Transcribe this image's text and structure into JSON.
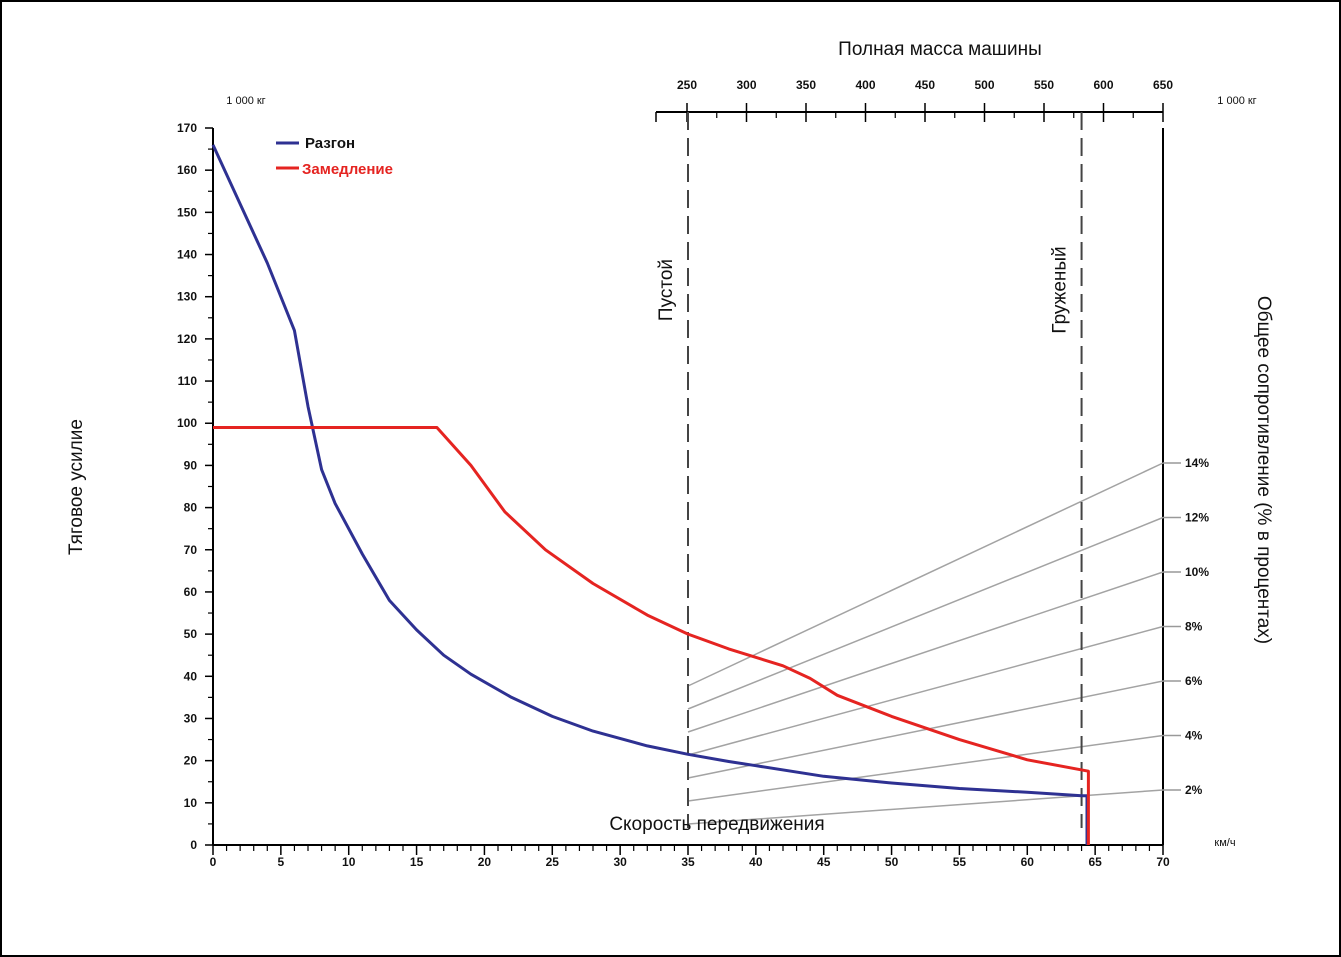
{
  "chart_data": {
    "type": "line",
    "xlabel": "Скорость передвижения",
    "x_unit": "км/ч",
    "ylabel": "Тяговое усилие",
    "y_unit_left": "1 000 кг",
    "top_axis_title": "Полная масса машины",
    "top_axis_unit": "1 000 кг",
    "right_axis_title": "Общее сопротивление (% в процентах)",
    "xlim": [
      0,
      70
    ],
    "ylim": [
      0,
      170
    ],
    "x_ticks": [
      "0",
      "5",
      "10",
      "15",
      "20",
      "25",
      "30",
      "35",
      "40",
      "45",
      "50",
      "55",
      "60",
      "65",
      "70"
    ],
    "y_ticks": [
      "0",
      "10",
      "20",
      "30",
      "40",
      "50",
      "60",
      "70",
      "80",
      "90",
      "100",
      "110",
      "120",
      "130",
      "140",
      "150",
      "160",
      "170"
    ],
    "top_ticks": [
      "250",
      "300",
      "350",
      "400",
      "450",
      "500",
      "550",
      "600",
      "650"
    ],
    "top_axis_range": [
      250,
      650
    ],
    "markers": [
      {
        "label": "Пустой",
        "x": 35
      },
      {
        "label": "Груженый",
        "x": 64
      }
    ],
    "resistance_lines": [
      "2%",
      "4%",
      "6%",
      "8%",
      "10%",
      "12%",
      "14%"
    ],
    "series": [
      {
        "name": "Разгон",
        "color": "#2e3192",
        "points": [
          [
            0,
            166
          ],
          [
            2,
            152
          ],
          [
            4,
            138
          ],
          [
            6,
            122
          ],
          [
            7,
            104
          ],
          [
            8,
            89
          ],
          [
            9,
            81
          ],
          [
            11,
            69
          ],
          [
            13,
            58
          ],
          [
            15,
            51
          ],
          [
            17,
            45
          ],
          [
            19,
            40.5
          ],
          [
            22,
            35
          ],
          [
            25,
            30.5
          ],
          [
            28,
            27
          ],
          [
            32,
            23.5
          ],
          [
            35,
            21.5
          ],
          [
            38,
            19.8
          ],
          [
            40,
            18.8
          ],
          [
            45,
            16.3
          ],
          [
            50,
            14.7
          ],
          [
            55,
            13.4
          ],
          [
            60,
            12.5
          ],
          [
            64,
            11.7
          ],
          [
            64.4,
            11.7
          ],
          [
            64.4,
            0
          ]
        ]
      },
      {
        "name": "Замедление",
        "color": "#e52421",
        "points": [
          [
            0,
            99
          ],
          [
            16.5,
            99
          ],
          [
            19,
            90
          ],
          [
            21.5,
            79
          ],
          [
            24.5,
            70
          ],
          [
            28,
            62
          ],
          [
            32,
            54.5
          ],
          [
            35,
            50
          ],
          [
            38,
            46.5
          ],
          [
            42,
            42.5
          ],
          [
            44,
            39.5
          ],
          [
            46,
            35.5
          ],
          [
            50,
            30.5
          ],
          [
            55,
            25
          ],
          [
            60,
            20.2
          ],
          [
            64.5,
            17.5
          ],
          [
            64.5,
            0
          ]
        ]
      }
    ],
    "grid": false,
    "legend_position": "top-left"
  }
}
